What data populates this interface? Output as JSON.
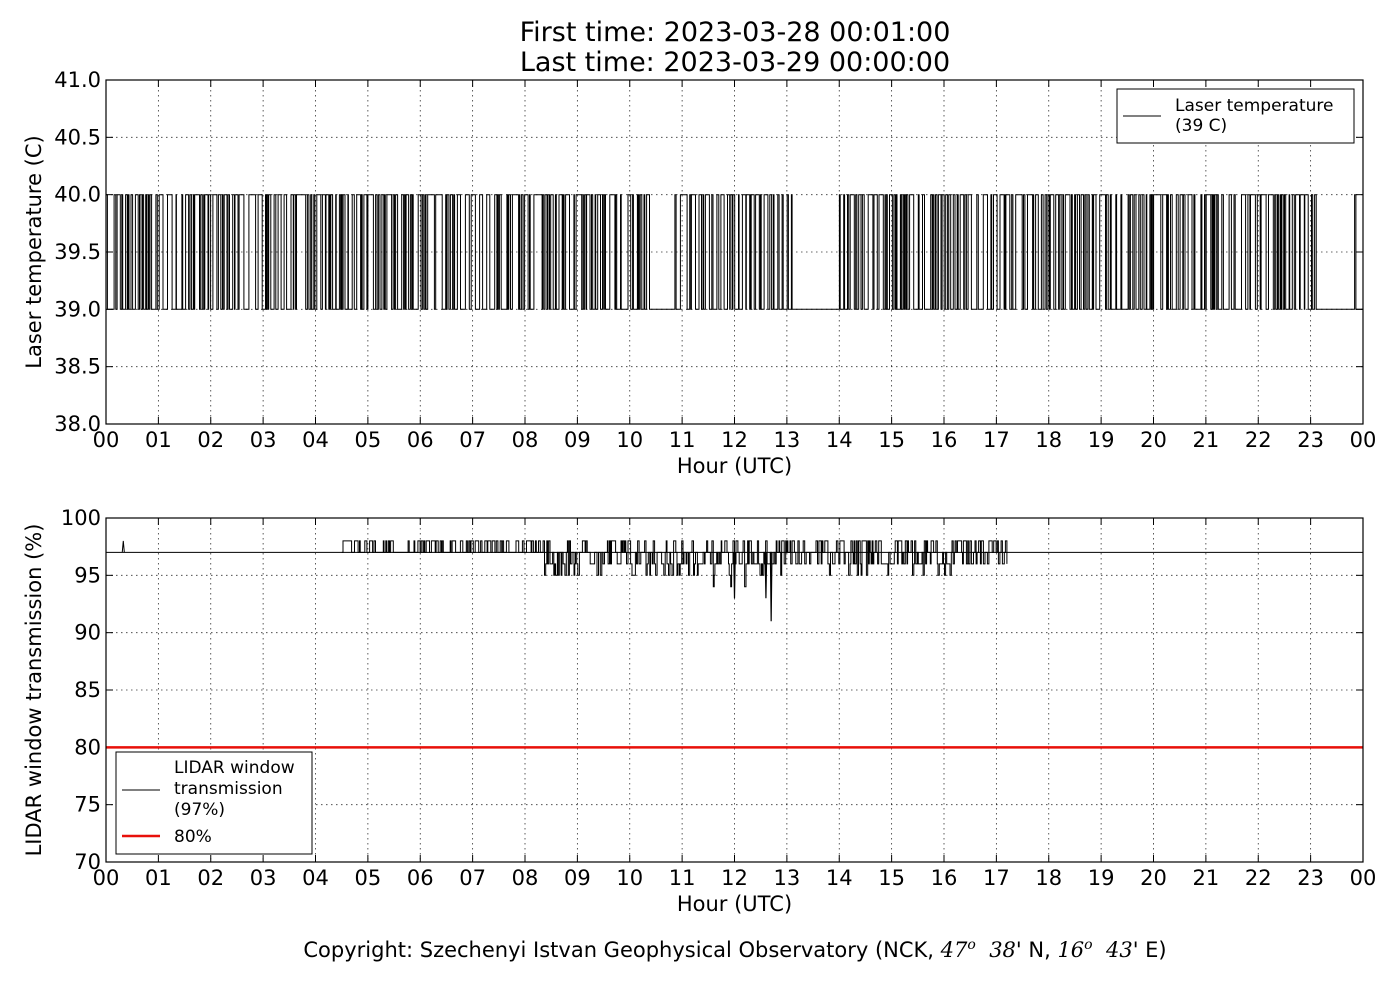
{
  "title": {
    "line1": "First time: 2023-03-28 00:01:00",
    "line2": "Last time: 2023-03-29 00:00:00"
  },
  "copyright": {
    "prefix": "Copyright: Szechenyi Istvan Geophysical Observatory (NCK, ",
    "lat_deg": "47",
    "deg_mark": "o",
    "lat_min": "38",
    "lat_suffix": "' N, ",
    "lon_deg": "16",
    "lon_min": "43",
    "lon_suffix": "' E)"
  },
  "chart_data": [
    {
      "type": "line",
      "xlabel": "Hour (UTC)",
      "ylabel": "Laser temperature (C)",
      "xlim": [
        0,
        24
      ],
      "ylim": [
        38.0,
        41.0
      ],
      "xticks": [
        "00",
        "01",
        "02",
        "03",
        "04",
        "05",
        "06",
        "07",
        "08",
        "09",
        "10",
        "11",
        "12",
        "13",
        "14",
        "15",
        "16",
        "17",
        "18",
        "19",
        "20",
        "21",
        "22",
        "23",
        "00"
      ],
      "yticks": [
        "38.0",
        "38.5",
        "39.0",
        "39.5",
        "40.0",
        "40.5",
        "41.0"
      ],
      "grid": true,
      "legend": "top-right",
      "series": [
        {
          "name": "Laser temperature\n(39 C)",
          "color": "#000000",
          "pattern": "oscillates between 39.0 and 40.0 through the day; steady at 39.0 during 10.5–10.8 h, 13.1–13.9 h, 23.1–23.8 h and 23.8–24 h",
          "levels": [
            39.0,
            40.0
          ],
          "steady_39_intervals": [
            [
              10.5,
              10.8
            ],
            [
              13.1,
              13.9
            ],
            [
              23.1,
              23.8
            ],
            [
              23.85,
              24.0
            ]
          ]
        }
      ]
    },
    {
      "type": "line",
      "xlabel": "Hour (UTC)",
      "ylabel": "LIDAR window transmission (%)",
      "xlim": [
        0,
        24
      ],
      "ylim": [
        70,
        100
      ],
      "xticks": [
        "00",
        "01",
        "02",
        "03",
        "04",
        "05",
        "06",
        "07",
        "08",
        "09",
        "10",
        "11",
        "12",
        "13",
        "14",
        "15",
        "16",
        "17",
        "18",
        "19",
        "20",
        "21",
        "22",
        "23",
        "00"
      ],
      "yticks": [
        "70",
        "75",
        "80",
        "85",
        "90",
        "95",
        "100"
      ],
      "grid": true,
      "legend": "lower-left",
      "series": [
        {
          "name": "LIDAR window\ntransmission\n(97%)",
          "color": "#000000",
          "baseline": 97,
          "noisy_interval": [
            4.5,
            17.2
          ],
          "spikes": [
            [
              0.33,
              98
            ],
            [
              12.0,
              93
            ],
            [
              12.6,
              93
            ],
            [
              12.7,
              91
            ]
          ]
        },
        {
          "name": "80%",
          "color": "#e8100a",
          "values": [
            80,
            80
          ],
          "x": [
            0,
            24
          ]
        }
      ]
    }
  ]
}
